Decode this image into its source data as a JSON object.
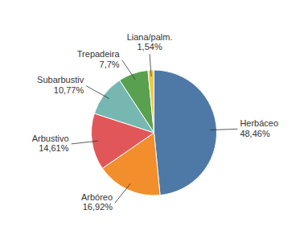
{
  "chart_data": {
    "type": "pie",
    "categories": [
      "Herbáceo",
      "Arbóreo",
      "Arbustivo",
      "Subarbustiv",
      "Trepadeira",
      "Liana/palm."
    ],
    "values": [
      48.46,
      16.92,
      14.61,
      10.77,
      7.7,
      1.54
    ],
    "value_labels": [
      "48,46%",
      "16,92%",
      "14,61%",
      "10,77%",
      "7,7%",
      "1,54%"
    ],
    "data_labels": true,
    "colors": [
      "#4e79a7",
      "#f28e2b",
      "#e15759",
      "#76b7b2",
      "#59a14f",
      "#edc948"
    ]
  }
}
